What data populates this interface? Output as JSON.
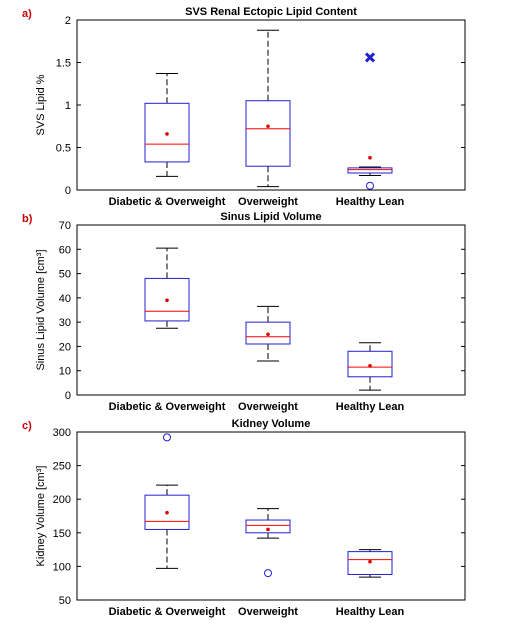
{
  "chart_data": [
    {
      "type": "box",
      "panel_label": "a)",
      "title": "SVS Renal Ectopic Lipid Content",
      "ylabel": "SVS Lipid %",
      "ylim": [
        0,
        2
      ],
      "yticks": [
        "0",
        "0.5",
        "1",
        "1.5",
        "2"
      ],
      "categories": [
        "Diabetic & Overweight",
        "Overweight",
        "Healthy Lean"
      ],
      "boxes": [
        {
          "whisker_low": 0.16,
          "q1": 0.33,
          "median": 0.54,
          "q3": 1.02,
          "whisker_high": 1.37,
          "mean": 0.66,
          "outliers": []
        },
        {
          "whisker_low": 0.04,
          "q1": 0.28,
          "median": 0.72,
          "q3": 1.05,
          "whisker_high": 1.88,
          "mean": 0.75,
          "outliers": []
        },
        {
          "whisker_low": 0.17,
          "q1": 0.2,
          "median": 0.24,
          "q3": 0.26,
          "whisker_high": 0.27,
          "mean": 0.38,
          "outliers": [
            {
              "value": 1.56,
              "marker": "x"
            },
            {
              "value": 0.05,
              "marker": "circle"
            }
          ]
        }
      ]
    },
    {
      "type": "box",
      "panel_label": "b)",
      "title": "Sinus Lipid Volume",
      "ylabel": "Sinus Lipid Volume [cm³]",
      "ylim": [
        0,
        70
      ],
      "yticks": [
        "0",
        "10",
        "20",
        "30",
        "40",
        "50",
        "60",
        "70"
      ],
      "categories": [
        "Diabetic & Overweight",
        "Overweight",
        "Healthy Lean"
      ],
      "boxes": [
        {
          "whisker_low": 27.5,
          "q1": 30.5,
          "median": 34.5,
          "q3": 48,
          "whisker_high": 60.5,
          "mean": 39,
          "outliers": []
        },
        {
          "whisker_low": 14,
          "q1": 21,
          "median": 24,
          "q3": 30,
          "whisker_high": 36.5,
          "mean": 25,
          "outliers": []
        },
        {
          "whisker_low": 2,
          "q1": 7.5,
          "median": 11.5,
          "q3": 18,
          "whisker_high": 21.5,
          "mean": 12,
          "outliers": []
        }
      ]
    },
    {
      "type": "box",
      "panel_label": "c)",
      "title": "Kidney Volume",
      "ylabel": "Kidney Volume [cm³]",
      "ylim": [
        50,
        300
      ],
      "yticks": [
        "50",
        "100",
        "150",
        "200",
        "250",
        "300"
      ],
      "categories": [
        "Diabetic & Overweight",
        "Overweight",
        "Healthy Lean"
      ],
      "boxes": [
        {
          "whisker_low": 97,
          "q1": 155,
          "median": 167,
          "q3": 206,
          "whisker_high": 221,
          "mean": 180,
          "outliers": [
            {
              "value": 292,
              "marker": "circle"
            }
          ]
        },
        {
          "whisker_low": 142,
          "q1": 150,
          "median": 161,
          "q3": 169,
          "whisker_high": 186,
          "mean": 155,
          "outliers": [
            {
              "value": 90,
              "marker": "circle"
            }
          ]
        },
        {
          "whisker_low": 84,
          "q1": 88,
          "median": 110,
          "q3": 122,
          "whisker_high": 125,
          "mean": 107,
          "outliers": []
        }
      ]
    }
  ],
  "colors": {
    "box": "#2020d0",
    "median": "#ff0000",
    "mean": "#dd0000",
    "whisker": "#000000",
    "panel_label": "#cc0000"
  }
}
